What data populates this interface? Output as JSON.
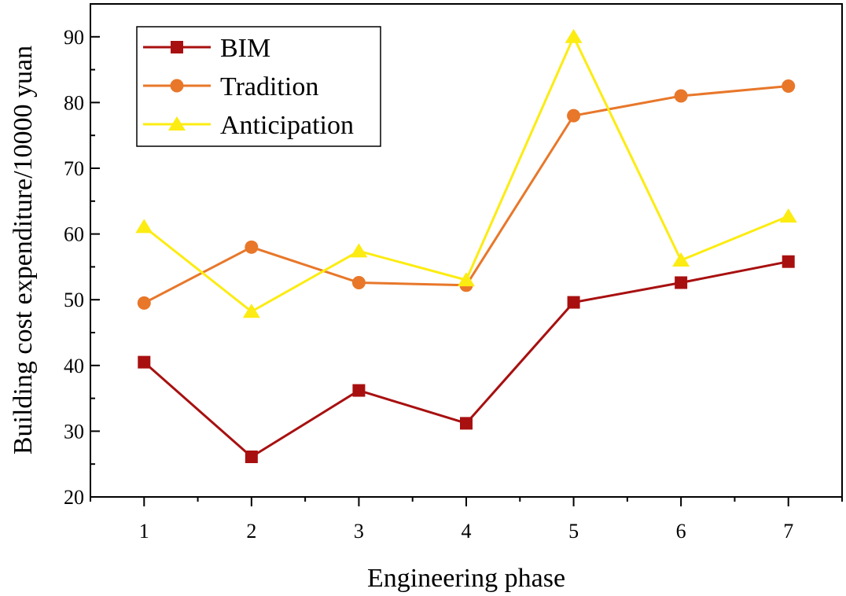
{
  "chart_data": {
    "type": "line",
    "title": "",
    "xlabel": "Engineering phase",
    "ylabel": "Building cost expenditure/10000 yuan",
    "x": [
      1,
      2,
      3,
      4,
      5,
      6,
      7
    ],
    "xlim": [
      0.5,
      7.5
    ],
    "ylim": [
      20,
      95
    ],
    "yticks": [
      20,
      30,
      40,
      50,
      60,
      70,
      80,
      90
    ],
    "grid": false,
    "legend_position": "top-left",
    "series": [
      {
        "name": "BIM",
        "marker": "square",
        "color": "#a81010",
        "values": [
          40.5,
          26.1,
          36.2,
          31.2,
          49.6,
          52.6,
          55.8
        ]
      },
      {
        "name": "Tradition",
        "marker": "circle",
        "color": "#e8772a",
        "values": [
          49.5,
          58.0,
          52.6,
          52.2,
          78.0,
          81.0,
          82.5
        ]
      },
      {
        "name": "Anticipation",
        "marker": "triangle",
        "color": "#fcec12",
        "values": [
          61.1,
          48.2,
          57.4,
          53.0,
          90.0,
          56.0,
          62.7
        ]
      }
    ]
  }
}
